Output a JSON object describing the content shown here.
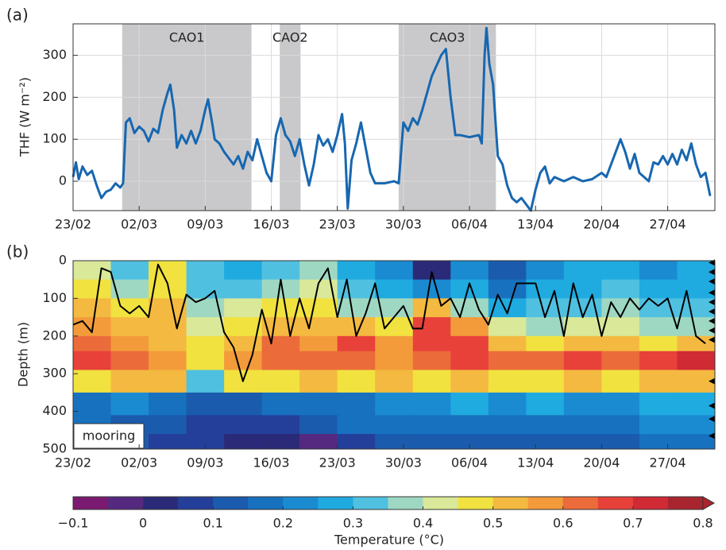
{
  "chart_data": [
    {
      "type": "line",
      "panel_label": "(a)",
      "ylabel": "THF (W m⁻²)",
      "x": [
        0,
        0.3,
        0.6,
        1,
        1.5,
        2,
        2.5,
        3,
        3.5,
        4,
        4.5,
        5,
        5.3,
        5.6,
        6,
        6.5,
        7,
        7.5,
        8,
        8.5,
        9,
        9.5,
        10,
        10.3,
        10.7,
        11,
        11.5,
        12,
        12.5,
        13,
        13.5,
        14,
        14.3,
        14.8,
        15,
        15.5,
        16,
        16.5,
        17,
        17.5,
        18,
        18.5,
        19,
        19.5,
        20,
        20.5,
        21,
        21.5,
        22,
        22.5,
        23,
        23.5,
        24,
        24.5,
        25,
        25.5,
        26,
        26.5,
        27,
        27.5,
        28,
        28.5,
        28.8,
        29.1,
        29.5,
        30,
        30.5,
        31,
        31.5,
        32,
        33,
        34,
        34.5,
        35,
        35.5,
        36,
        36.5,
        37,
        37.5,
        38,
        38.5,
        39,
        39.5,
        40,
        40.5,
        41,
        42,
        43,
        43.3,
        43.6,
        43.8,
        44.1,
        44.5,
        45,
        45.5,
        46,
        46.5,
        47,
        47.5,
        48,
        48.5,
        49,
        49.5,
        50,
        50.5,
        51,
        51.5,
        52,
        53,
        54,
        55,
        56,
        56.5,
        57,
        57.5,
        58,
        58.5,
        59,
        59.5,
        60,
        60.5,
        61,
        61.5,
        62,
        62.5,
        63,
        63.5,
        64,
        64.5,
        65,
        65.5,
        66,
        66.5,
        67,
        67.5
      ],
      "series": [
        {
          "color": "#1767b0",
          "values": [
            10,
            45,
            5,
            35,
            15,
            25,
            -10,
            -40,
            -25,
            -20,
            -5,
            -15,
            -5,
            140,
            150,
            115,
            130,
            120,
            95,
            125,
            115,
            170,
            210,
            230,
            170,
            80,
            110,
            90,
            120,
            90,
            120,
            170,
            195,
            130,
            100,
            90,
            70,
            55,
            40,
            60,
            30,
            70,
            50,
            100,
            60,
            20,
            0,
            110,
            150,
            110,
            95,
            60,
            100,
            40,
            -10,
            40,
            110,
            85,
            100,
            70,
            110,
            160,
            90,
            -65,
            50,
            90,
            140,
            80,
            20,
            -5,
            -5,
            0,
            -5,
            140,
            120,
            150,
            135,
            170,
            210,
            250,
            275,
            300,
            315,
            200,
            110,
            110,
            105,
            110,
            90,
            300,
            365,
            280,
            230,
            60,
            40,
            -10,
            -40,
            -50,
            -40,
            -55,
            -70,
            -20,
            20,
            35,
            -5,
            10,
            5,
            0,
            10,
            0,
            5,
            20,
            10,
            40,
            70,
            100,
            70,
            30,
            65,
            20,
            10,
            0,
            45,
            40,
            60,
            40,
            65,
            40,
            75,
            50,
            90,
            40,
            10,
            20,
            -35
          ]
        }
      ],
      "xlim": [
        0,
        68
      ],
      "xticks": [
        {
          "value": 0,
          "label": "23/02"
        },
        {
          "value": 7,
          "label": "02/03"
        },
        {
          "value": 14,
          "label": "09/03"
        },
        {
          "value": 21,
          "label": "16/03"
        },
        {
          "value": 28,
          "label": "23/03"
        },
        {
          "value": 35,
          "label": "30/03"
        },
        {
          "value": 42,
          "label": "06/04"
        },
        {
          "value": 49,
          "label": "13/04"
        },
        {
          "value": 56,
          "label": "20/04"
        },
        {
          "value": 63,
          "label": "27/04"
        }
      ],
      "ylim": [
        -70,
        375
      ],
      "yticks": [
        0,
        100,
        200,
        300
      ],
      "grid": true,
      "shaded": [
        {
          "label": "CAO1",
          "start": 5.2,
          "end": 18.9
        },
        {
          "label": "CAO2",
          "start": 21.9,
          "end": 24.1
        },
        {
          "label": "CAO3",
          "start": 34.5,
          "end": 44.8
        }
      ]
    },
    {
      "type": "heatmap",
      "panel_label": "(b)",
      "ylabel": "Depth (m)",
      "x_edges": [
        0,
        4,
        8,
        12,
        16,
        20,
        24,
        28,
        32,
        36,
        40,
        44,
        48,
        52,
        56,
        60,
        64,
        68
      ],
      "y_edges": [
        0,
        50,
        100,
        150,
        200,
        240,
        290,
        350,
        410,
        460,
        500
      ],
      "values": [
        [
          0.4,
          0.3,
          0.45,
          0.3,
          0.25,
          0.3,
          0.35,
          0.25,
          0.2,
          0.0,
          0.2,
          0.1,
          0.2,
          0.25,
          0.25,
          0.2,
          0.25
        ],
        [
          0.45,
          0.35,
          0.45,
          0.3,
          0.3,
          0.35,
          0.4,
          0.3,
          0.25,
          0.2,
          0.25,
          0.15,
          0.25,
          0.25,
          0.3,
          0.25,
          0.25
        ],
        [
          0.5,
          0.45,
          0.5,
          0.35,
          0.4,
          0.45,
          0.45,
          0.35,
          0.35,
          0.5,
          0.35,
          0.25,
          0.3,
          0.3,
          0.35,
          0.3,
          0.3
        ],
        [
          0.55,
          0.5,
          0.5,
          0.4,
          0.45,
          0.5,
          0.5,
          0.5,
          0.45,
          0.65,
          0.55,
          0.4,
          0.35,
          0.4,
          0.4,
          0.35,
          0.35
        ],
        [
          0.6,
          0.55,
          0.5,
          0.45,
          0.5,
          0.6,
          0.55,
          0.65,
          0.55,
          0.65,
          0.65,
          0.5,
          0.45,
          0.5,
          0.5,
          0.45,
          0.5
        ],
        [
          0.65,
          0.6,
          0.55,
          0.45,
          0.55,
          0.6,
          0.6,
          0.6,
          0.55,
          0.6,
          0.65,
          0.6,
          0.6,
          0.65,
          0.6,
          0.65,
          0.7
        ],
        [
          0.45,
          0.5,
          0.5,
          0.3,
          0.45,
          0.45,
          0.5,
          0.45,
          0.5,
          0.45,
          0.5,
          0.45,
          0.45,
          0.5,
          0.45,
          0.5,
          0.5
        ],
        [
          0.15,
          0.2,
          0.15,
          0.1,
          0.1,
          0.15,
          0.15,
          0.15,
          0.2,
          0.2,
          0.25,
          0.2,
          0.25,
          0.2,
          0.2,
          0.25,
          0.25
        ],
        [
          0.15,
          0.1,
          0.1,
          0.05,
          0.05,
          0.05,
          0.1,
          0.15,
          0.15,
          0.15,
          0.15,
          0.15,
          0.15,
          0.15,
          0.15,
          0.2,
          0.2
        ],
        [
          0.1,
          0.1,
          0.05,
          0.05,
          0.0,
          0.0,
          -0.05,
          0.05,
          0.1,
          0.1,
          0.1,
          0.1,
          0.1,
          0.1,
          0.1,
          0.15,
          0.15
        ]
      ],
      "mixed_layer": {
        "color": "#000000",
        "x": [
          0,
          1,
          2,
          3,
          4,
          5,
          6,
          7,
          8,
          9,
          10,
          11,
          12,
          13,
          14,
          15,
          16,
          17,
          18,
          19,
          20,
          21,
          22,
          23,
          24,
          25,
          26,
          27,
          28,
          29,
          30,
          31,
          32,
          33,
          34,
          35,
          36,
          37,
          38,
          39,
          40,
          41,
          42,
          43,
          44,
          45,
          46,
          47,
          48,
          49,
          50,
          51,
          52,
          53,
          54,
          55,
          56,
          57,
          58,
          59,
          60,
          61,
          62,
          63,
          64,
          65,
          66,
          67
        ],
        "values": [
          170,
          160,
          190,
          20,
          30,
          120,
          140,
          120,
          150,
          10,
          60,
          180,
          90,
          110,
          100,
          80,
          190,
          230,
          320,
          250,
          130,
          220,
          50,
          200,
          100,
          180,
          60,
          20,
          150,
          50,
          200,
          140,
          60,
          180,
          150,
          120,
          180,
          180,
          30,
          120,
          100,
          150,
          60,
          130,
          170,
          90,
          140,
          60,
          60,
          60,
          150,
          80,
          200,
          60,
          150,
          90,
          200,
          110,
          150,
          100,
          130,
          100,
          120,
          100,
          180,
          80,
          200,
          220
        ]
      },
      "instrument_depths": [
        5,
        30,
        55,
        85,
        110,
        135,
        160,
        185,
        210,
        320,
        385,
        420,
        465
      ],
      "annotation": "mooring",
      "xlim": [
        0,
        68
      ],
      "xticks": [
        {
          "value": 0,
          "label": "23/02"
        },
        {
          "value": 7,
          "label": "02/03"
        },
        {
          "value": 14,
          "label": "09/03"
        },
        {
          "value": 21,
          "label": "16/03"
        },
        {
          "value": 28,
          "label": "23/03"
        },
        {
          "value": 35,
          "label": "30/03"
        },
        {
          "value": 42,
          "label": "06/04"
        },
        {
          "value": 49,
          "label": "13/04"
        },
        {
          "value": 56,
          "label": "20/04"
        },
        {
          "value": 63,
          "label": "27/04"
        }
      ],
      "ylim": [
        500,
        0
      ],
      "yticks": [
        0,
        100,
        200,
        300,
        400,
        500
      ],
      "grid": false,
      "colorbar": {
        "label": "Temperature (°C)",
        "extend": "max",
        "bounds": [
          -0.1,
          -0.05,
          0,
          0.05,
          0.1,
          0.15,
          0.2,
          0.25,
          0.3,
          0.35,
          0.4,
          0.45,
          0.5,
          0.55,
          0.6,
          0.65,
          0.7,
          0.75,
          0.8
        ],
        "colors": [
          "#7a1a70",
          "#55297f",
          "#2b2a78",
          "#243f99",
          "#1b5bad",
          "#1771bf",
          "#1a8bd1",
          "#1faae0",
          "#50c0e0",
          "#9fd8c2",
          "#d9e899",
          "#f1e23f",
          "#f4b940",
          "#f39b3a",
          "#ec6b3a",
          "#e8413a",
          "#d02a35",
          "#a82530"
        ],
        "ticks": [
          {
            "value": -0.1,
            "label": "−0.1"
          },
          0,
          0.1,
          0.2,
          0.3,
          0.4,
          0.5,
          0.6,
          0.7,
          0.8
        ]
      }
    }
  ]
}
